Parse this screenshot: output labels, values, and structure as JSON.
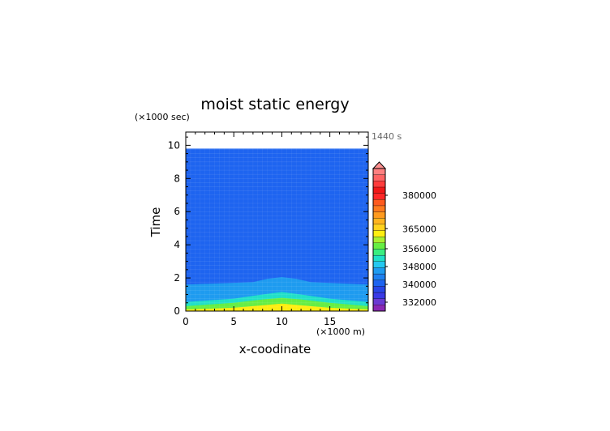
{
  "chart_data": {
    "type": "heatmap",
    "title": "moist static energy",
    "xlabel": "x-coodinate",
    "ylabel": "Time",
    "x_unit": "(×1000 m)",
    "y_unit": "(×1000 sec)",
    "time_stamp": "1440 s",
    "xlim": [
      0,
      19
    ],
    "ylim": [
      0,
      10.8
    ],
    "x_ticks": [
      {
        "value": 0,
        "label": "0"
      },
      {
        "value": 5,
        "label": "5"
      },
      {
        "value": 10,
        "label": "10"
      },
      {
        "value": 15,
        "label": "15"
      }
    ],
    "y_ticks": [
      {
        "value": 0,
        "label": "0"
      },
      {
        "value": 2,
        "label": "2"
      },
      {
        "value": 4,
        "label": "4"
      },
      {
        "value": 6,
        "label": "6"
      },
      {
        "value": 8,
        "label": "8"
      },
      {
        "value": 10,
        "label": "10"
      }
    ],
    "data_top_time": 9.8,
    "background_color": "#1e64f0",
    "bands": [
      {
        "name": "light-blue",
        "color": "#1e9bf0",
        "edge": 1
      },
      {
        "name": "cyan",
        "color": "#20e0c8",
        "edge": 2
      },
      {
        "name": "green",
        "color": "#66ee44",
        "edge": 3
      },
      {
        "name": "yellow",
        "color": "#ffee10",
        "edge": 4
      }
    ],
    "band_edges": [
      {
        "edge": 1,
        "points": [
          [
            0,
            1.6
          ],
          [
            7,
            1.75
          ],
          [
            8.5,
            1.95
          ],
          [
            10,
            2.05
          ],
          [
            11.5,
            1.95
          ],
          [
            13,
            1.75
          ],
          [
            19,
            1.6
          ]
        ]
      },
      {
        "edge": 2,
        "points": [
          [
            0,
            0.55
          ],
          [
            5,
            0.75
          ],
          [
            8,
            1.0
          ],
          [
            10,
            1.15
          ],
          [
            12,
            1.0
          ],
          [
            15,
            0.75
          ],
          [
            19,
            0.55
          ]
        ]
      },
      {
        "edge": 3,
        "points": [
          [
            0,
            0.3
          ],
          [
            5,
            0.5
          ],
          [
            8,
            0.7
          ],
          [
            10,
            0.8
          ],
          [
            12,
            0.7
          ],
          [
            15,
            0.5
          ],
          [
            19,
            0.3
          ]
        ]
      },
      {
        "edge": 4,
        "points": [
          [
            0,
            0.1
          ],
          [
            5,
            0.2
          ],
          [
            8,
            0.35
          ],
          [
            10,
            0.45
          ],
          [
            12,
            0.35
          ],
          [
            15,
            0.2
          ],
          [
            19,
            0.1
          ]
        ]
      }
    ],
    "colorbar": {
      "labels": [
        {
          "value": 380000,
          "label": "380000"
        },
        {
          "value": 365000,
          "label": "365000"
        },
        {
          "value": 356000,
          "label": "356000"
        },
        {
          "value": 348000,
          "label": "348000"
        },
        {
          "value": 340000,
          "label": "340000"
        },
        {
          "value": 332000,
          "label": "332000"
        }
      ],
      "colors_bottom_to_top": [
        "#8a28b4",
        "#6a3ad2",
        "#3a3ae6",
        "#2846e6",
        "#1e64f0",
        "#1e80f0",
        "#1e9bf0",
        "#24c8f0",
        "#20e0c8",
        "#3aee80",
        "#66ee44",
        "#aaf030",
        "#ffee10",
        "#ffd21e",
        "#ffb41e",
        "#ff9a1e",
        "#ff7a1e",
        "#ff5a1e",
        "#ff2828",
        "#f01818",
        "#ff3c3c",
        "#ff6464",
        "#ff8080"
      ],
      "extend_color": "#ff9090"
    }
  }
}
